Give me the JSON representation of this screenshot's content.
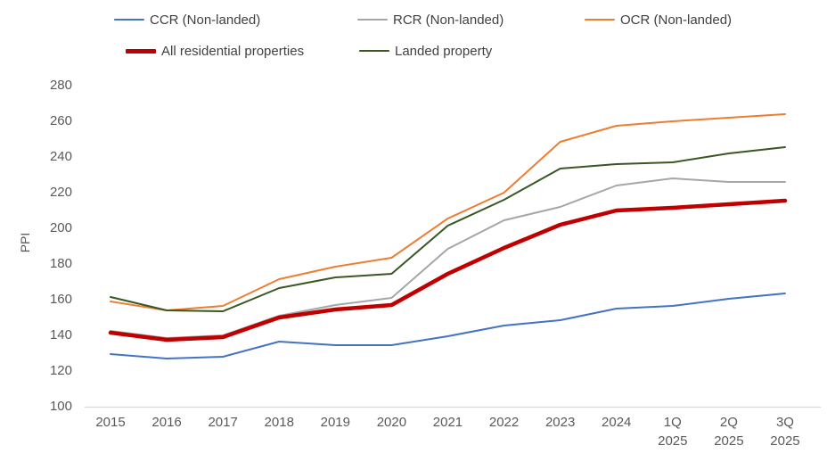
{
  "chart_data": {
    "type": "line",
    "title": "",
    "ylabel": "PPI",
    "xlabel": "",
    "ylim": [
      100,
      280
    ],
    "ytick_step": 20,
    "ytick_labels": [
      "100",
      "120",
      "140",
      "160",
      "180",
      "200",
      "220",
      "240",
      "260",
      "280"
    ],
    "grid": false,
    "legend_position": "top",
    "categories": [
      "2015",
      "2016",
      "2017",
      "2018",
      "2019",
      "2020",
      "2021",
      "2022",
      "2023",
      "2024",
      "1Q 2025",
      "2Q 2025",
      "3Q 2025"
    ],
    "series": [
      {
        "name": "CCR (Non-landed)",
        "color": "#4472C4",
        "stroke_width": 2,
        "values": [
          129,
          126.5,
          127.5,
          136,
          134,
          134,
          139,
          145,
          148,
          154.5,
          156,
          160,
          163
        ]
      },
      {
        "name": "RCR  (Non-landed)",
        "color": "#A6A6A6",
        "stroke_width": 2,
        "values": [
          142,
          138,
          139.5,
          150.5,
          156.5,
          160.5,
          188,
          204,
          211.5,
          223.5,
          227.5,
          225.5,
          225.5
        ]
      },
      {
        "name": "OCR  (Non-landed)",
        "color": "#ED7D31",
        "stroke_width": 2,
        "values": [
          158.5,
          153.5,
          156,
          171,
          178,
          183,
          205,
          219.5,
          248,
          257,
          259.5,
          261.5,
          263.5
        ]
      },
      {
        "name": "All residential properties",
        "color": "#C00000",
        "stroke_width": 4.5,
        "values": [
          141,
          137,
          138.5,
          149.5,
          154,
          156.5,
          174,
          188.5,
          201.5,
          209.5,
          211,
          213,
          215
        ]
      },
      {
        "name": "Landed property",
        "color": "#385723",
        "stroke_width": 2,
        "values": [
          161,
          153.5,
          153,
          166,
          172,
          174,
          201,
          215.5,
          233,
          235.5,
          236.5,
          241.5,
          245
        ]
      }
    ],
    "colors": {
      "axis_line": "#D9D9D9",
      "tick_text": "#595959",
      "legend_text": "#404040"
    }
  }
}
